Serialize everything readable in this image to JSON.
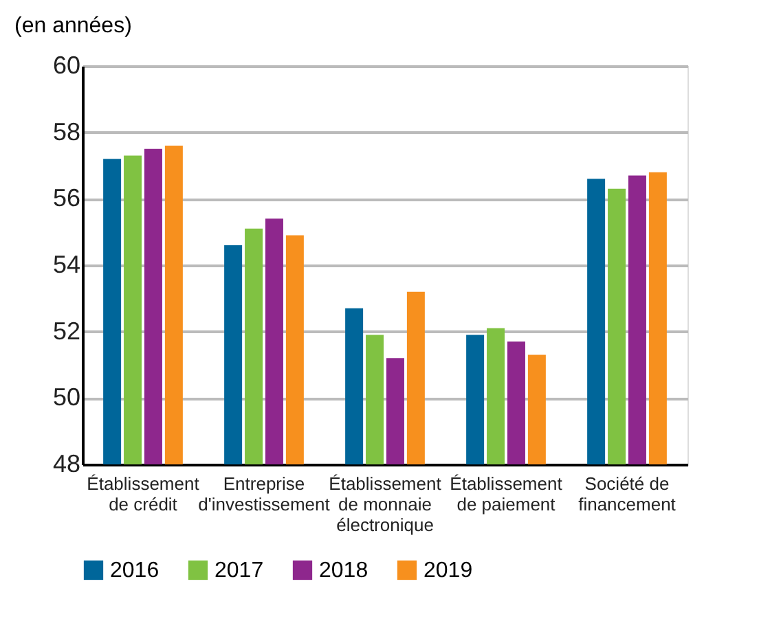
{
  "chart_data": {
    "type": "bar",
    "ylabel": "(en années)",
    "categories": [
      "Établissement\nde crédit",
      "Entreprise\nd'investissement",
      "Établissement\nde monnaie\nélectronique",
      "Établissement\nde paiement",
      "Société de\nfinancement"
    ],
    "series": [
      {
        "name": "2016",
        "color": "#00669a",
        "values": [
          57.2,
          54.6,
          52.7,
          51.9,
          56.6
        ]
      },
      {
        "name": "2017",
        "color": "#80c242",
        "values": [
          57.3,
          55.1,
          51.9,
          52.1,
          56.3
        ]
      },
      {
        "name": "2018",
        "color": "#8e278d",
        "values": [
          57.5,
          55.4,
          51.2,
          51.7,
          56.7
        ]
      },
      {
        "name": "2019",
        "color": "#f7901e",
        "values": [
          57.6,
          54.9,
          53.2,
          51.3,
          56.8
        ]
      }
    ],
    "ylim": [
      48,
      60
    ],
    "yticks": [
      48,
      50,
      52,
      54,
      56,
      58,
      60
    ],
    "grid": "y",
    "legend": "bottom"
  }
}
